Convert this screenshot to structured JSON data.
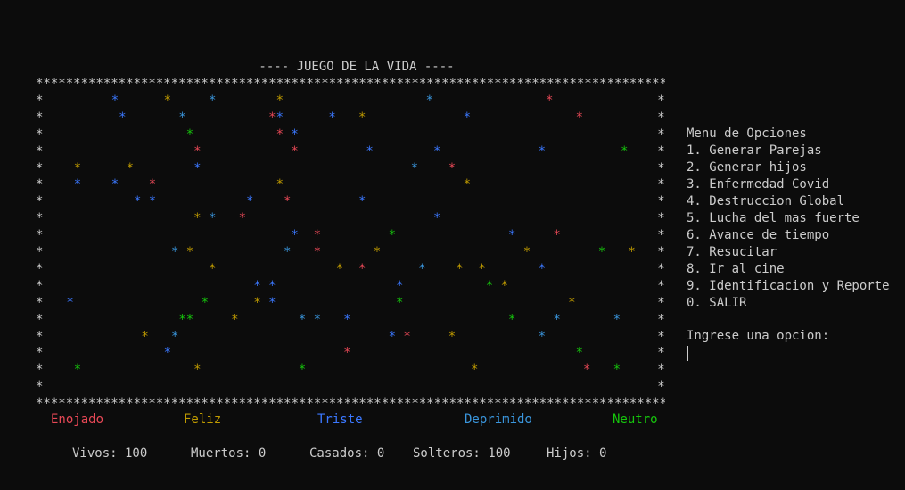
{
  "title": "---- JUEGO DE LA VIDA ----",
  "legend": {
    "enojado": "Enojado",
    "feliz": "Feliz",
    "triste": "Triste",
    "deprimido": "Deprimido",
    "neutro": "Neutro"
  },
  "colors": {
    "enojado": "#e74856",
    "feliz": "#c19c00",
    "triste": "#3b78ff",
    "deprimido": "#3a96dd",
    "neutro": "#16c60c"
  },
  "stats": {
    "vivos": "Vivos: 100",
    "muertos": "Muertos: 0",
    "casados": "Casados: 0",
    "solteros": "Solteros: 100",
    "hijos": "Hijos: 0"
  },
  "menu": {
    "title": "Menu de Opciones",
    "items": [
      "1. Generar Parejas",
      "2. Generar hijos",
      "3. Enfermedad Covid",
      "4. Destruccion Global",
      "5. Lucha del mas fuerte",
      "6. Avance de tiempo",
      "7. Resucitar",
      "8. Ir al cine",
      "9. Identificacion y Reporte",
      "0. SALIR"
    ],
    "prompt": "Ingrese una opcion:"
  },
  "board": {
    "border_char": "*",
    "cols": 84,
    "rows": 18,
    "cells": [
      {
        "r": 1,
        "c": 10,
        "m": "triste"
      },
      {
        "r": 1,
        "c": 17,
        "m": "feliz"
      },
      {
        "r": 1,
        "c": 23,
        "m": "deprimido"
      },
      {
        "r": 1,
        "c": 32,
        "m": "feliz"
      },
      {
        "r": 1,
        "c": 52,
        "m": "deprimido"
      },
      {
        "r": 1,
        "c": 68,
        "m": "enojado"
      },
      {
        "r": 2,
        "c": 11,
        "m": "triste"
      },
      {
        "r": 2,
        "c": 19,
        "m": "deprimido"
      },
      {
        "r": 2,
        "c": 31,
        "m": "enojado"
      },
      {
        "r": 2,
        "c": 32,
        "m": "triste"
      },
      {
        "r": 2,
        "c": 39,
        "m": "triste"
      },
      {
        "r": 2,
        "c": 43,
        "m": "feliz"
      },
      {
        "r": 2,
        "c": 57,
        "m": "triste"
      },
      {
        "r": 2,
        "c": 72,
        "m": "enojado"
      },
      {
        "r": 3,
        "c": 20,
        "m": "neutro"
      },
      {
        "r": 3,
        "c": 32,
        "m": "enojado"
      },
      {
        "r": 3,
        "c": 34,
        "m": "triste"
      },
      {
        "r": 4,
        "c": 21,
        "m": "enojado"
      },
      {
        "r": 4,
        "c": 34,
        "m": "enojado"
      },
      {
        "r": 4,
        "c": 44,
        "m": "triste"
      },
      {
        "r": 4,
        "c": 53,
        "m": "triste"
      },
      {
        "r": 4,
        "c": 67,
        "m": "triste"
      },
      {
        "r": 4,
        "c": 78,
        "m": "neutro"
      },
      {
        "r": 5,
        "c": 5,
        "m": "feliz"
      },
      {
        "r": 5,
        "c": 12,
        "m": "feliz"
      },
      {
        "r": 5,
        "c": 21,
        "m": "triste"
      },
      {
        "r": 5,
        "c": 50,
        "m": "deprimido"
      },
      {
        "r": 5,
        "c": 55,
        "m": "enojado"
      },
      {
        "r": 6,
        "c": 5,
        "m": "triste"
      },
      {
        "r": 6,
        "c": 10,
        "m": "triste"
      },
      {
        "r": 6,
        "c": 15,
        "m": "enojado"
      },
      {
        "r": 6,
        "c": 32,
        "m": "feliz"
      },
      {
        "r": 6,
        "c": 57,
        "m": "feliz"
      },
      {
        "r": 7,
        "c": 13,
        "m": "triste"
      },
      {
        "r": 7,
        "c": 15,
        "m": "triste"
      },
      {
        "r": 7,
        "c": 28,
        "m": "triste"
      },
      {
        "r": 7,
        "c": 33,
        "m": "enojado"
      },
      {
        "r": 7,
        "c": 43,
        "m": "triste"
      },
      {
        "r": 8,
        "c": 21,
        "m": "feliz"
      },
      {
        "r": 8,
        "c": 23,
        "m": "deprimido"
      },
      {
        "r": 8,
        "c": 27,
        "m": "enojado"
      },
      {
        "r": 8,
        "c": 53,
        "m": "triste"
      },
      {
        "r": 9,
        "c": 34,
        "m": "triste"
      },
      {
        "r": 9,
        "c": 37,
        "m": "enojado"
      },
      {
        "r": 9,
        "c": 47,
        "m": "neutro"
      },
      {
        "r": 9,
        "c": 63,
        "m": "triste"
      },
      {
        "r": 9,
        "c": 69,
        "m": "enojado"
      },
      {
        "r": 10,
        "c": 18,
        "m": "deprimido"
      },
      {
        "r": 10,
        "c": 20,
        "m": "feliz"
      },
      {
        "r": 10,
        "c": 33,
        "m": "deprimido"
      },
      {
        "r": 10,
        "c": 37,
        "m": "enojado"
      },
      {
        "r": 10,
        "c": 45,
        "m": "feliz"
      },
      {
        "r": 10,
        "c": 65,
        "m": "feliz"
      },
      {
        "r": 10,
        "c": 75,
        "m": "neutro"
      },
      {
        "r": 10,
        "c": 79,
        "m": "feliz"
      },
      {
        "r": 11,
        "c": 23,
        "m": "feliz"
      },
      {
        "r": 11,
        "c": 40,
        "m": "feliz"
      },
      {
        "r": 11,
        "c": 43,
        "m": "enojado"
      },
      {
        "r": 11,
        "c": 51,
        "m": "deprimido"
      },
      {
        "r": 11,
        "c": 56,
        "m": "feliz"
      },
      {
        "r": 11,
        "c": 59,
        "m": "feliz"
      },
      {
        "r": 11,
        "c": 67,
        "m": "triste"
      },
      {
        "r": 12,
        "c": 29,
        "m": "triste"
      },
      {
        "r": 12,
        "c": 31,
        "m": "triste"
      },
      {
        "r": 12,
        "c": 48,
        "m": "triste"
      },
      {
        "r": 12,
        "c": 60,
        "m": "neutro"
      },
      {
        "r": 12,
        "c": 62,
        "m": "feliz"
      },
      {
        "r": 13,
        "c": 4,
        "m": "triste"
      },
      {
        "r": 13,
        "c": 22,
        "m": "neutro"
      },
      {
        "r": 13,
        "c": 29,
        "m": "feliz"
      },
      {
        "r": 13,
        "c": 31,
        "m": "triste"
      },
      {
        "r": 13,
        "c": 48,
        "m": "neutro"
      },
      {
        "r": 13,
        "c": 71,
        "m": "feliz"
      },
      {
        "r": 14,
        "c": 19,
        "m": "neutro"
      },
      {
        "r": 14,
        "c": 20,
        "m": "neutro"
      },
      {
        "r": 14,
        "c": 26,
        "m": "feliz"
      },
      {
        "r": 14,
        "c": 35,
        "m": "deprimido"
      },
      {
        "r": 14,
        "c": 37,
        "m": "deprimido"
      },
      {
        "r": 14,
        "c": 41,
        "m": "triste"
      },
      {
        "r": 14,
        "c": 63,
        "m": "neutro"
      },
      {
        "r": 14,
        "c": 69,
        "m": "deprimido"
      },
      {
        "r": 14,
        "c": 77,
        "m": "deprimido"
      },
      {
        "r": 15,
        "c": 14,
        "m": "feliz"
      },
      {
        "r": 15,
        "c": 18,
        "m": "deprimido"
      },
      {
        "r": 15,
        "c": 47,
        "m": "triste"
      },
      {
        "r": 15,
        "c": 49,
        "m": "enojado"
      },
      {
        "r": 15,
        "c": 55,
        "m": "feliz"
      },
      {
        "r": 15,
        "c": 67,
        "m": "deprimido"
      },
      {
        "r": 16,
        "c": 17,
        "m": "triste"
      },
      {
        "r": 16,
        "c": 41,
        "m": "enojado"
      },
      {
        "r": 16,
        "c": 72,
        "m": "neutro"
      },
      {
        "r": 17,
        "c": 5,
        "m": "neutro"
      },
      {
        "r": 17,
        "c": 21,
        "m": "feliz"
      },
      {
        "r": 17,
        "c": 35,
        "m": "neutro"
      },
      {
        "r": 17,
        "c": 58,
        "m": "feliz"
      },
      {
        "r": 17,
        "c": 73,
        "m": "enojado"
      },
      {
        "r": 17,
        "c": 77,
        "m": "neutro"
      }
    ]
  }
}
